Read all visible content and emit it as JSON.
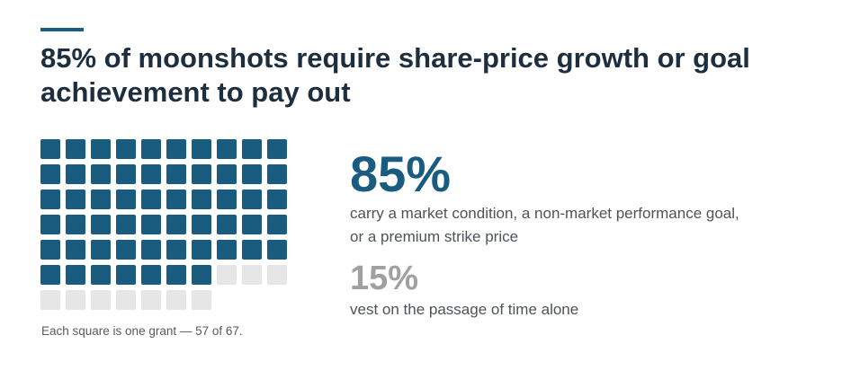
{
  "headline": "85% of moonshots require share-price growth or goal achievement to pay out",
  "caption": "Each square is one grant — 57 of 67.",
  "stats": {
    "primary": {
      "value": "85%",
      "text": "carry a market condition, a non-market performance goal, or a premium strike price"
    },
    "secondary": {
      "value": "15%",
      "text": "vest on the passage of time alone"
    }
  },
  "colors": {
    "accent": "#1a5c80",
    "filled": "#1a5c80",
    "empty": "#e6e6e6",
    "headline": "#1d2f3f",
    "secondary_stat": "#a0a0a0"
  },
  "chart_data": {
    "type": "waffle",
    "columns": 10,
    "total": 67,
    "filled": 57,
    "empty": 10
  }
}
